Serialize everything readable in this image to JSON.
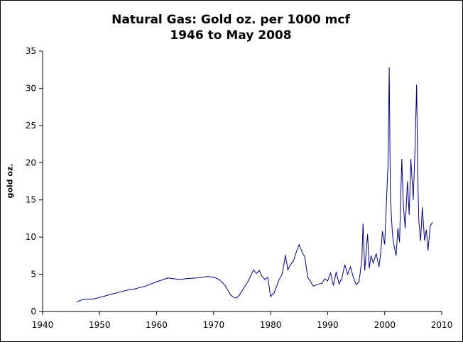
{
  "chart_data": {
    "type": "line",
    "title": "Natural Gas: Gold oz. per 1000 mcf",
    "subtitle": "1946 to May 2008",
    "xlabel": "",
    "ylabel": "gold oz.",
    "xlim": [
      1940,
      2010
    ],
    "ylim": [
      0,
      35
    ],
    "x_ticks": [
      "1940",
      "1950",
      "1960",
      "1970",
      "1980",
      "1990",
      "2000",
      "2010"
    ],
    "y_ticks": [
      "0",
      "5",
      "10",
      "15",
      "20",
      "25",
      "30",
      "35"
    ],
    "grid": false,
    "legend": "none",
    "line_color": "#000080",
    "series": [
      {
        "x": [
          1946,
          1947,
          1949,
          1950,
          1952,
          1954,
          1955,
          1956,
          1958,
          1960,
          1962,
          1963,
          1964,
          1965,
          1967,
          1968,
          1969,
          1970,
          1971,
          1972,
          1973,
          1973.5,
          1974,
          1974.5,
          1975,
          1976,
          1976.5,
          1977,
          1977.5,
          1978,
          1978.5,
          1979,
          1979.5,
          1980,
          1980.3,
          1980.6,
          1981,
          1981.5,
          1982,
          1982.3,
          1982.6,
          1983,
          1983.5,
          1984,
          1984.5,
          1985,
          1985.5,
          1986,
          1986.5,
          1987,
          1987.5,
          1988,
          1989,
          1989.5,
          1990,
          1990.5,
          1991,
          1991.5,
          1992,
          1992.5,
          1993,
          1993.5,
          1994,
          1994.5,
          1995,
          1995.5,
          1996,
          1996.2,
          1996.5,
          1997,
          1997.3,
          1997.6,
          1998,
          1998.5,
          1999,
          1999.3,
          1999.6,
          2000,
          2000.3,
          2000.6,
          2000.8,
          2001,
          2001.2,
          2001.4,
          2001.6,
          2002,
          2002.3,
          2002.6,
          2003,
          2003.3,
          2003.6,
          2004,
          2004.3,
          2004.6,
          2005,
          2005.3,
          2005.6,
          2005.8,
          2006,
          2006.3,
          2006.6,
          2007,
          2007.3,
          2007.6,
          2008,
          2008.4
        ],
        "y": [
          1.3,
          1.6,
          1.7,
          1.9,
          2.3,
          2.7,
          2.9,
          3.0,
          3.4,
          4.0,
          4.5,
          4.4,
          4.3,
          4.4,
          4.5,
          4.6,
          4.7,
          4.6,
          4.3,
          3.5,
          2.2,
          1.9,
          1.8,
          2.2,
          2.8,
          4.0,
          4.8,
          5.6,
          5.1,
          5.5,
          4.7,
          4.3,
          4.6,
          2.0,
          2.3,
          2.5,
          3.3,
          4.3,
          5.0,
          6.2,
          7.6,
          5.6,
          6.3,
          6.8,
          8.0,
          9.0,
          8.0,
          7.3,
          4.6,
          4.0,
          3.4,
          3.6,
          3.8,
          4.4,
          4.1,
          5.2,
          3.5,
          5.3,
          3.7,
          4.5,
          6.3,
          5.0,
          6.0,
          4.6,
          3.6,
          4.0,
          7.0,
          11.8,
          5.5,
          10.4,
          5.8,
          7.5,
          6.5,
          7.8,
          6.0,
          7.8,
          10.8,
          9.0,
          14.5,
          20.0,
          32.8,
          16.0,
          12.5,
          10.0,
          9.0,
          7.5,
          11.2,
          9.3,
          20.5,
          14.0,
          11.2,
          17.5,
          13.0,
          20.5,
          15.0,
          21.5,
          30.5,
          18.0,
          12.0,
          9.5,
          14.0,
          9.5,
          11.0,
          8.2,
          11.5,
          12.0
        ]
      }
    ]
  }
}
